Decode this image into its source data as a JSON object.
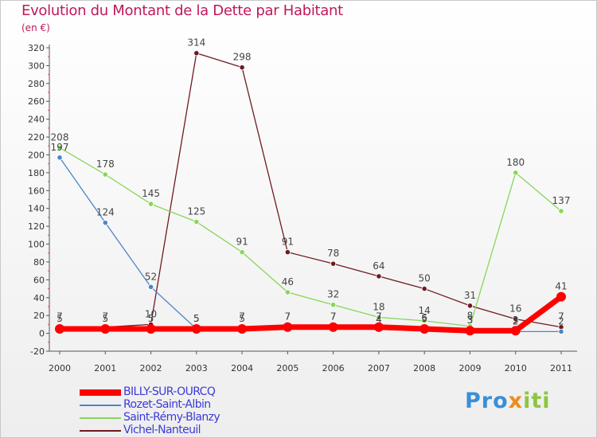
{
  "title": "Evolution du Montant de la Dette par Habitant",
  "subtitle": "(en €)",
  "logo": {
    "part1": "Pro",
    "part2": "x",
    "part3": "iti"
  },
  "chart_data": {
    "type": "line",
    "title": "Evolution du Montant de la Dette par Habitant",
    "ylabel": "(en €)",
    "xlabel": "",
    "ylim": [
      -20,
      320
    ],
    "yticks": [
      -20,
      0,
      20,
      40,
      60,
      80,
      100,
      120,
      140,
      160,
      180,
      200,
      220,
      240,
      260,
      280,
      300,
      320
    ],
    "grid": false,
    "legend_position": "bottom-left",
    "categories": [
      "2000",
      "2001",
      "2002",
      "2003",
      "2004",
      "2005",
      "2006",
      "2007",
      "2008",
      "2009",
      "2010",
      "2011"
    ],
    "series": [
      {
        "name": "Vichel-Nanteuil",
        "color": "#6e1a22",
        "values": [
          7,
          7,
          10,
          314,
          298,
          91,
          78,
          64,
          50,
          31,
          16,
          7
        ]
      },
      {
        "name": "Rozet-Saint-Albin",
        "color": "#4a86c8",
        "values": [
          197,
          124,
          52,
          5,
          7,
          7,
          7,
          4,
          6,
          3,
          2,
          2
        ]
      },
      {
        "name": "Saint-Rémy-Blanzy",
        "color": "#88d658",
        "values": [
          208,
          178,
          145,
          125,
          91,
          46,
          32,
          18,
          14,
          8,
          180,
          137
        ]
      },
      {
        "name": "BILLY-SUR-OURCQ",
        "color": "#ff0000",
        "values": [
          5,
          5,
          5,
          5,
          5,
          7,
          7,
          7,
          5,
          3,
          3,
          41
        ]
      }
    ],
    "legend": [
      "BILLY-SUR-OURCQ",
      "Rozet-Saint-Albin",
      "Saint-Rémy-Blanzy",
      "Vichel-Nanteuil"
    ]
  }
}
